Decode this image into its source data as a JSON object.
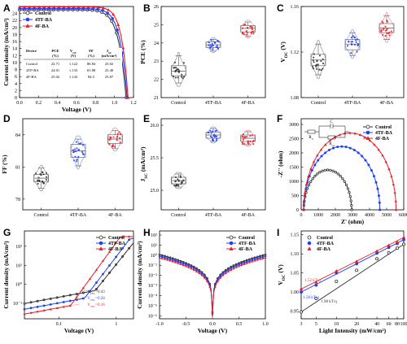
{
  "colors": {
    "control": "#333333",
    "tf": "#1f3fff",
    "f": "#ee1c24"
  },
  "chart_data": [
    {
      "panel": "A",
      "type": "line",
      "xlabel": "Voltage (V)",
      "ylabel": "Current density (mA/cm²)",
      "xlim": [
        0,
        1.2
      ],
      "ylim": [
        0,
        26
      ],
      "xticks": [
        "0.0",
        "0.2",
        "0.4",
        "0.6",
        "0.8",
        "1.0",
        "1.2"
      ],
      "yticks": [
        "0",
        "2",
        "4",
        "6",
        "8",
        "10",
        "12",
        "14",
        "16",
        "18",
        "20",
        "22",
        "24"
      ],
      "legend": [
        "Control",
        "4TF-BA",
        "4F-BA"
      ],
      "jv": [
        {
          "name": "Control",
          "voc": 1.122,
          "jsc": 25.02,
          "pow": 14
        },
        {
          "name": "4TF-BA",
          "voc": 1.133,
          "jsc": 25.4,
          "pow": 15
        },
        {
          "name": "4F-BA",
          "voc": 1.143,
          "jsc": 25.87,
          "pow": 17
        }
      ],
      "table": {
        "headers": [
          "Device",
          "PCE\n(%)",
          "V_OC\n(V)",
          "FF\n(%)",
          "J_SC\n(mA/cm²)"
        ],
        "rows": [
          [
            "Control",
            "22.71",
            "1.122",
            "80.84",
            "25.02"
          ],
          [
            "4TF-BA",
            "24.01",
            "1.133",
            "81.88",
            "25.40"
          ],
          [
            "4F-BA",
            "25.02",
            "1.143",
            "84.5",
            "25.87"
          ]
        ]
      }
    },
    {
      "panel": "B",
      "type": "box",
      "ylabel": "PCE (%)",
      "categories": [
        "Control",
        "4TF-BA",
        "4F-BA"
      ],
      "ylim": [
        21,
        26
      ],
      "yticks": [
        "21",
        "22",
        "23",
        "24",
        "25",
        "26"
      ],
      "boxes": [
        {
          "min": 21.8,
          "q1": 22.2,
          "med": 22.45,
          "q3": 22.75,
          "max": 23.3,
          "center": 22.45,
          "spread": 0.45
        },
        {
          "min": 23.55,
          "q1": 23.75,
          "med": 23.9,
          "q3": 24.05,
          "max": 24.2,
          "center": 23.9,
          "spread": 0.22
        },
        {
          "min": 24.35,
          "q1": 24.6,
          "med": 24.8,
          "q3": 24.95,
          "max": 25.15,
          "center": 24.8,
          "spread": 0.25
        }
      ]
    },
    {
      "panel": "C",
      "type": "box",
      "ylabel": "V_OC (V)",
      "categories": [
        "Control",
        "4TF-BA",
        "4F-BA"
      ],
      "ylim": [
        1.08,
        1.16
      ],
      "yticks": [
        "1.08",
        "1.12",
        "1.16"
      ],
      "boxes": [
        {
          "min": 1.1,
          "q1": 1.108,
          "med": 1.113,
          "q3": 1.118,
          "max": 1.127,
          "center": 1.113,
          "spread": 0.008
        },
        {
          "min": 1.117,
          "q1": 1.122,
          "med": 1.127,
          "q3": 1.131,
          "max": 1.137,
          "center": 1.127,
          "spread": 0.006
        },
        {
          "min": 1.131,
          "q1": 1.137,
          "med": 1.141,
          "q3": 1.145,
          "max": 1.152,
          "center": 1.141,
          "spread": 0.006
        }
      ]
    },
    {
      "panel": "D",
      "type": "box",
      "ylabel": "FF (%)",
      "categories": [
        "Control",
        "4TF-BA",
        "4F-BA"
      ],
      "ylim": [
        77,
        85.5
      ],
      "yticks": [
        "78",
        "81",
        "84"
      ],
      "boxes": [
        {
          "min": 79.0,
          "q1": 79.6,
          "med": 79.95,
          "q3": 80.3,
          "max": 80.9,
          "center": 79.95,
          "spread": 0.6
        },
        {
          "min": 81.1,
          "q1": 81.9,
          "med": 82.5,
          "q3": 83.1,
          "max": 83.6,
          "center": 82.5,
          "spread": 0.8
        },
        {
          "min": 82.7,
          "q1": 83.2,
          "med": 83.6,
          "q3": 84.0,
          "max": 84.4,
          "center": 83.6,
          "spread": 0.6
        }
      ]
    },
    {
      "panel": "E",
      "type": "box",
      "ylabel": "J_SC (mA/cm²)",
      "categories": [
        "Control",
        "4TF-BA",
        "4F-BA"
      ],
      "ylim": [
        24.7,
        26.1
      ],
      "yticks": [
        "25.0",
        "25.5",
        "26.0"
      ],
      "boxes": [
        {
          "min": 25.05,
          "q1": 25.1,
          "med": 25.15,
          "q3": 25.2,
          "max": 25.25,
          "center": 25.15,
          "spread": 0.08
        },
        {
          "min": 25.75,
          "q1": 25.8,
          "med": 25.85,
          "q3": 25.89,
          "max": 25.95,
          "center": 25.85,
          "spread": 0.07
        },
        {
          "min": 25.7,
          "q1": 25.75,
          "med": 25.8,
          "q3": 25.85,
          "max": 25.9,
          "center": 25.8,
          "spread": 0.07
        }
      ]
    },
    {
      "panel": "F",
      "type": "scatter",
      "xlabel": "Z' (ohm)",
      "ylabel": "-Z'' (ohm)",
      "xlim": [
        0,
        6000
      ],
      "ylim": [
        0,
        3200
      ],
      "xticks": [
        "0",
        "1000",
        "2000",
        "3000",
        "4000",
        "5000",
        "6000"
      ],
      "yticks": [
        "0",
        "500",
        "1000",
        "1500",
        "2000",
        "2500",
        "3000"
      ],
      "legend": [
        "Control",
        "4TF-BA",
        "4F-BA"
      ],
      "arcs": [
        {
          "name": "Control",
          "r0": 150,
          "r1": 2950
        },
        {
          "name": "4TF-BA",
          "r0": 150,
          "r1": 4600
        },
        {
          "name": "4F-BA",
          "r0": 150,
          "r1": 5550
        }
      ],
      "circuit": {
        "rs": "R_S",
        "c": "C",
        "rrec": "R_rec"
      }
    },
    {
      "panel": "G",
      "type": "line",
      "xlabel": "Voltage (V)",
      "ylabel": "Current density (mA/cm²)",
      "x_scale": "log",
      "y_scale": "log",
      "xticks": [
        "0.1",
        "1"
      ],
      "yticks": [
        "10⁻¹",
        "10⁰",
        "10¹",
        "10²"
      ],
      "legend": [
        "Control",
        "4TF-BA",
        "4F-BA"
      ],
      "annotations": [
        "V_TFL=0.43",
        "V_TFL=0.28",
        "V_TFL=0.16"
      ]
    },
    {
      "panel": "H",
      "type": "line",
      "xlabel": "Voltage (V)",
      "ylabel": "Current density (mA/cm²)",
      "xlim": [
        -1.0,
        1.0
      ],
      "y_scale": "log",
      "xticks": [
        "-1.0",
        "-0.5",
        "0.0",
        "0.5",
        "1.0"
      ],
      "yticks": [
        "10⁻⁶",
        "10⁻⁵",
        "10⁻⁴",
        "10⁻³",
        "10⁻²",
        "10⁻¹",
        "10⁰",
        "10¹",
        "10²"
      ],
      "legend": [
        "Control",
        "4TF-BA",
        "4F-BA"
      ]
    },
    {
      "panel": "I",
      "type": "scatter",
      "xlabel": "Light Intensity (mW/cm²)",
      "ylabel": "V_OC (V)",
      "x_scale": "log",
      "xlim": [
        3,
        100
      ],
      "ylim": [
        0.93,
        1.16
      ],
      "xticks": [
        "3",
        "5",
        "10",
        "20",
        "40",
        "60",
        "80",
        "100"
      ],
      "yticks": [
        "0.95",
        "1.00",
        "1.05",
        "1.10",
        "1.15"
      ],
      "legend": [
        "Control",
        "4TF-BA",
        "4F-BA"
      ],
      "slopes": [
        "1.98 kT/q",
        "1.58 kT/q",
        "1.52 kT/q"
      ],
      "series": [
        {
          "name": "Control",
          "x": [
            3,
            5,
            10,
            20,
            40,
            60,
            80,
            100
          ],
          "y": [
            0.948,
            0.983,
            1.028,
            1.057,
            1.087,
            1.103,
            1.115,
            1.125
          ]
        },
        {
          "name": "4TF-BA",
          "x": [
            3,
            5,
            10,
            20,
            40,
            60,
            80,
            100
          ],
          "y": [
            1.0,
            1.018,
            1.05,
            1.074,
            1.102,
            1.117,
            1.127,
            1.137
          ]
        },
        {
          "name": "4F-BA",
          "x": [
            3,
            5,
            10,
            20,
            40,
            60,
            80,
            100
          ],
          "y": [
            1.008,
            1.026,
            1.055,
            1.08,
            1.107,
            1.122,
            1.131,
            1.143
          ]
        }
      ]
    }
  ]
}
